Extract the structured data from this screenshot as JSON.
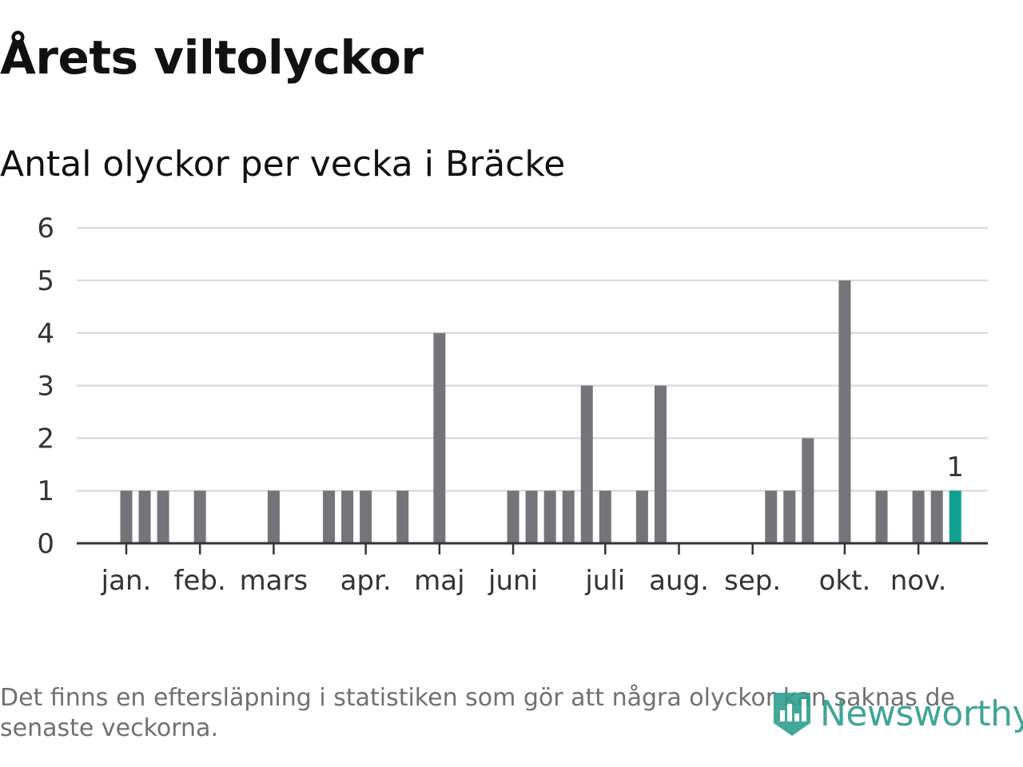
{
  "title": "Årets viltolyckor",
  "subtitle": "Antal olyckor per vecka i Bräcke",
  "footnote": "Det finns en eftersläpning i statistiken som gör att några olyckor kan saknas de senaste veckorna.",
  "brand": {
    "name": "Newsworthy",
    "icon": "newsworthy-logo-icon"
  },
  "colors": {
    "bar": "#757478",
    "highlight": "#0fa092",
    "grid": "#dcdcdc",
    "axis": "#333333",
    "brand": "#2f9e8f"
  },
  "chart_data": {
    "type": "bar",
    "title": "Antal olyckor per vecka i Bräcke",
    "xlabel": "",
    "ylabel": "",
    "ylim": [
      0,
      6
    ],
    "yticks": [
      0,
      1,
      2,
      3,
      4,
      5,
      6
    ],
    "grid": true,
    "months": [
      "jan.",
      "feb.",
      "mars",
      "apr.",
      "maj",
      "juni",
      "juli",
      "aug.",
      "sep.",
      "okt.",
      "nov."
    ],
    "month_start_week": [
      1,
      5,
      9,
      14,
      18,
      22,
      27,
      31,
      35,
      40,
      44
    ],
    "weeks": [
      1,
      2,
      3,
      4,
      5,
      6,
      7,
      8,
      9,
      10,
      11,
      12,
      13,
      14,
      15,
      16,
      17,
      18,
      19,
      20,
      21,
      22,
      23,
      24,
      25,
      26,
      27,
      28,
      29,
      30,
      31,
      32,
      33,
      34,
      35,
      36,
      37,
      38,
      39,
      40,
      41,
      42,
      43,
      44,
      45,
      46
    ],
    "values": [
      1,
      1,
      1,
      0,
      1,
      0,
      0,
      0,
      1,
      0,
      0,
      1,
      1,
      1,
      0,
      1,
      0,
      4,
      0,
      0,
      0,
      1,
      1,
      1,
      1,
      3,
      1,
      0,
      1,
      3,
      0,
      0,
      0,
      0,
      0,
      1,
      1,
      2,
      0,
      5,
      0,
      1,
      0,
      1,
      1,
      1
    ],
    "highlight_last": true,
    "data_label": "1"
  }
}
